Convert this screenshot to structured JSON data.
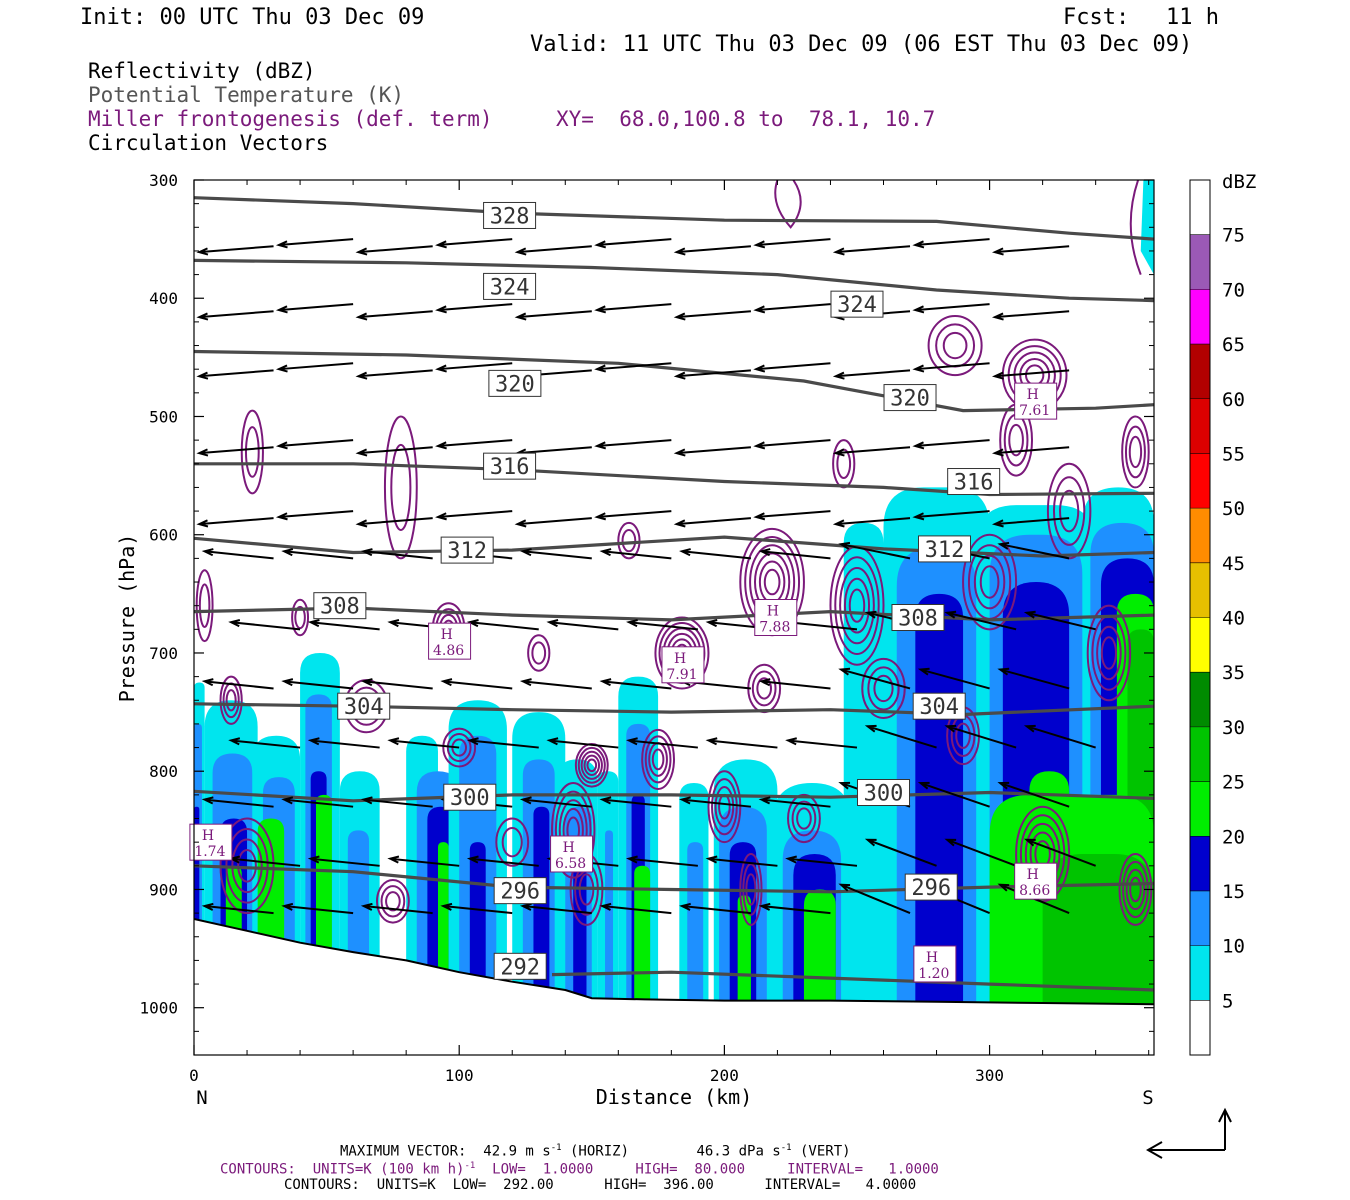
{
  "header": {
    "init": "Init: 00 UTC Thu 03 Dec 09",
    "fcst_label": "Fcst:",
    "fcst_value": "11 h",
    "valid": "Valid: 11 UTC Thu 03 Dec 09 (06 EST Thu 03 Dec 09)"
  },
  "legend": {
    "reflectivity": "Reflectivity (dBZ)",
    "theta": "Potential Temperature (K)",
    "frontogenesis": "Miller frontogenesis (def. term)",
    "xy": "XY=  68.0,100.8 to  78.1, 10.7",
    "vectors": "Circulation Vectors"
  },
  "colors": {
    "theta": "#4a4a4a",
    "frontogenesis": "#7b1a7b",
    "vectors": "#000000"
  },
  "chart_data": {
    "type": "heatmap",
    "xlabel": "Distance (km)",
    "ylabel": "Pressure (hPa)",
    "xlim": [
      0,
      362
    ],
    "ylim": [
      1040,
      300
    ],
    "x_ticks": [
      "0",
      "100",
      "200",
      "300"
    ],
    "y_ticks": [
      "300",
      "400",
      "500",
      "600",
      "700",
      "800",
      "900",
      "1000"
    ],
    "x_end_labels": {
      "left": "N",
      "right": "S"
    },
    "colorbar": {
      "title": "dBZ",
      "levels": [
        "5",
        "10",
        "15",
        "20",
        "25",
        "30",
        "35",
        "40",
        "45",
        "50",
        "55",
        "60",
        "65",
        "70",
        "75"
      ],
      "colors": [
        "#ffffff",
        "#00e5ee",
        "#1e90ff",
        "#0000cd",
        "#00ee00",
        "#00c400",
        "#008b00",
        "#ffff00",
        "#e6c000",
        "#ff8c00",
        "#ff0000",
        "#dd0000",
        "#b20000",
        "#ff00ff",
        "#9b59b6",
        "#ffffff"
      ]
    },
    "theta_labels": [
      {
        "value": "328",
        "x": 119,
        "p": 330
      },
      {
        "value": "324",
        "x": 119,
        "p": 390
      },
      {
        "value": "324",
        "x": 250,
        "p": 405
      },
      {
        "value": "320",
        "x": 121,
        "p": 472
      },
      {
        "value": "320",
        "x": 270,
        "p": 484
      },
      {
        "value": "316",
        "x": 119,
        "p": 542
      },
      {
        "value": "316",
        "x": 294,
        "p": 555
      },
      {
        "value": "312",
        "x": 103,
        "p": 613
      },
      {
        "value": "312",
        "x": 283,
        "p": 612
      },
      {
        "value": "308",
        "x": 55,
        "p": 660
      },
      {
        "value": "308",
        "x": 273,
        "p": 670
      },
      {
        "value": "304",
        "x": 64,
        "p": 745
      },
      {
        "value": "304",
        "x": 281,
        "p": 745
      },
      {
        "value": "300",
        "x": 104,
        "p": 822
      },
      {
        "value": "300",
        "x": 260,
        "p": 818
      },
      {
        "value": "296",
        "x": 123,
        "p": 901
      },
      {
        "value": "296",
        "x": 278,
        "p": 898
      },
      {
        "value": "292",
        "x": 123,
        "p": 965
      }
    ],
    "frontogenesis_maxima": [
      {
        "label": "H",
        "value": "4.86",
        "x": 96,
        "p": 690
      },
      {
        "label": "H",
        "value": "7.91",
        "x": 184,
        "p": 710
      },
      {
        "label": "H",
        "value": "7.88",
        "x": 219,
        "p": 670
      },
      {
        "label": "H",
        "value": "7.61",
        "x": 317,
        "p": 487
      },
      {
        "label": "H",
        "value": "6.58",
        "x": 142,
        "p": 870
      },
      {
        "label": "H",
        "value": "8.66",
        "x": 317,
        "p": 893
      },
      {
        "label": "H",
        "value": "1.20",
        "x": 279,
        "p": 963
      },
      {
        "label": "H",
        "value": "1.74",
        "x": 6,
        "p": 860
      }
    ],
    "frontogenesis_contours": {
      "units": "K (100 km h)-1",
      "low": 1.0,
      "high": 80.0,
      "interval": 1.0
    },
    "theta_contours": {
      "units": "K",
      "low": 292.0,
      "high": 396.0,
      "interval": 4.0
    }
  },
  "footer": {
    "max_vector": "MAXIMUM VECTOR:  42.9 m s",
    "horiz": " (HORIZ)",
    "vert_value": "46.3 dPa s",
    "vert": " (VERT)",
    "contours1": "CONTOURS:  UNITS=K (100 km h)",
    "contours1b": "  LOW=  1.0000     HIGH=  80.000     INTERVAL=   1.0000",
    "contours2": "CONTOURS:  UNITS=K  LOW=  292.00      HIGH=  396.00      INTERVAL=   4.0000",
    "exp": "-1"
  }
}
